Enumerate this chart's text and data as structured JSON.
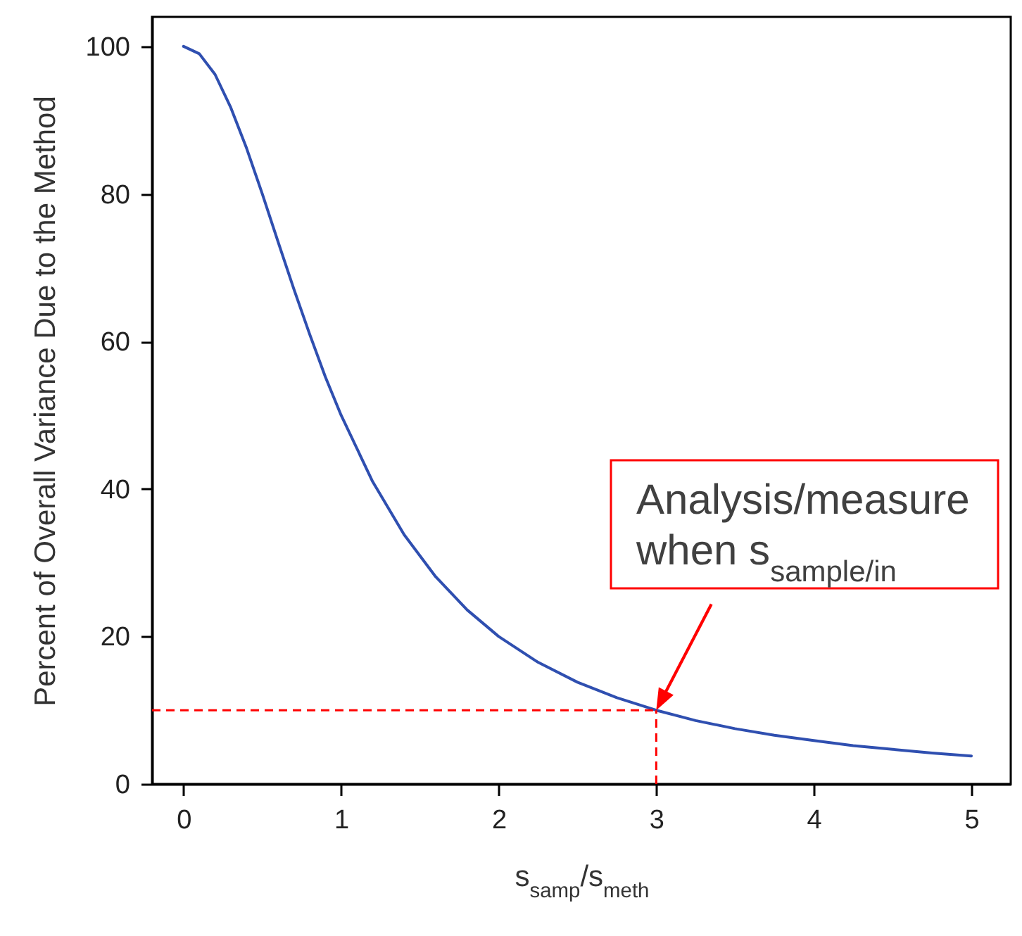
{
  "chart_data": {
    "type": "line",
    "xlabel": "s$_{samp}$/s$_{meth}$",
    "ylabel": "Percent of Overall Variance Due to the Method",
    "x": [
      0,
      0.1,
      0.2,
      0.3,
      0.4,
      0.5,
      0.6,
      0.7,
      0.8,
      0.9,
      1,
      1.2,
      1.4,
      1.6,
      1.8,
      2,
      2.25,
      2.5,
      2.75,
      3,
      3.25,
      3.5,
      3.75,
      4,
      4.25,
      4.5,
      4.75,
      5
    ],
    "series": [
      {
        "color": "#2f4fb0",
        "values": [
          100,
          99.0,
          96.2,
          91.7,
          86.2,
          80,
          73.5,
          67.1,
          61.0,
          55.2,
          50,
          41.0,
          33.8,
          28.1,
          23.6,
          20,
          16.5,
          13.8,
          11.7,
          10,
          8.6,
          7.5,
          6.6,
          5.9,
          5.2,
          4.7,
          4.2,
          3.8
        ]
      }
    ],
    "xlim": [
      -0.2,
      5.25
    ],
    "ylim": [
      0,
      104
    ],
    "xticks": [
      0,
      1,
      2,
      3,
      4,
      5
    ],
    "yticks": [
      0,
      20,
      40,
      60,
      80,
      100
    ],
    "ref_lines": [
      {
        "axis": "y",
        "value": 10,
        "color": "#ff0000",
        "line_style": "dashed"
      },
      {
        "axis": "x",
        "value": 3,
        "color": "#ff0000",
        "line_style": "dashed"
      }
    ],
    "annotations": [
      {
        "text": "Analysis/measure\nwhen s$_{sample/in}$",
        "x": 3,
        "y": 10
      }
    ],
    "marker": "none",
    "line_style": "solid"
  }
}
